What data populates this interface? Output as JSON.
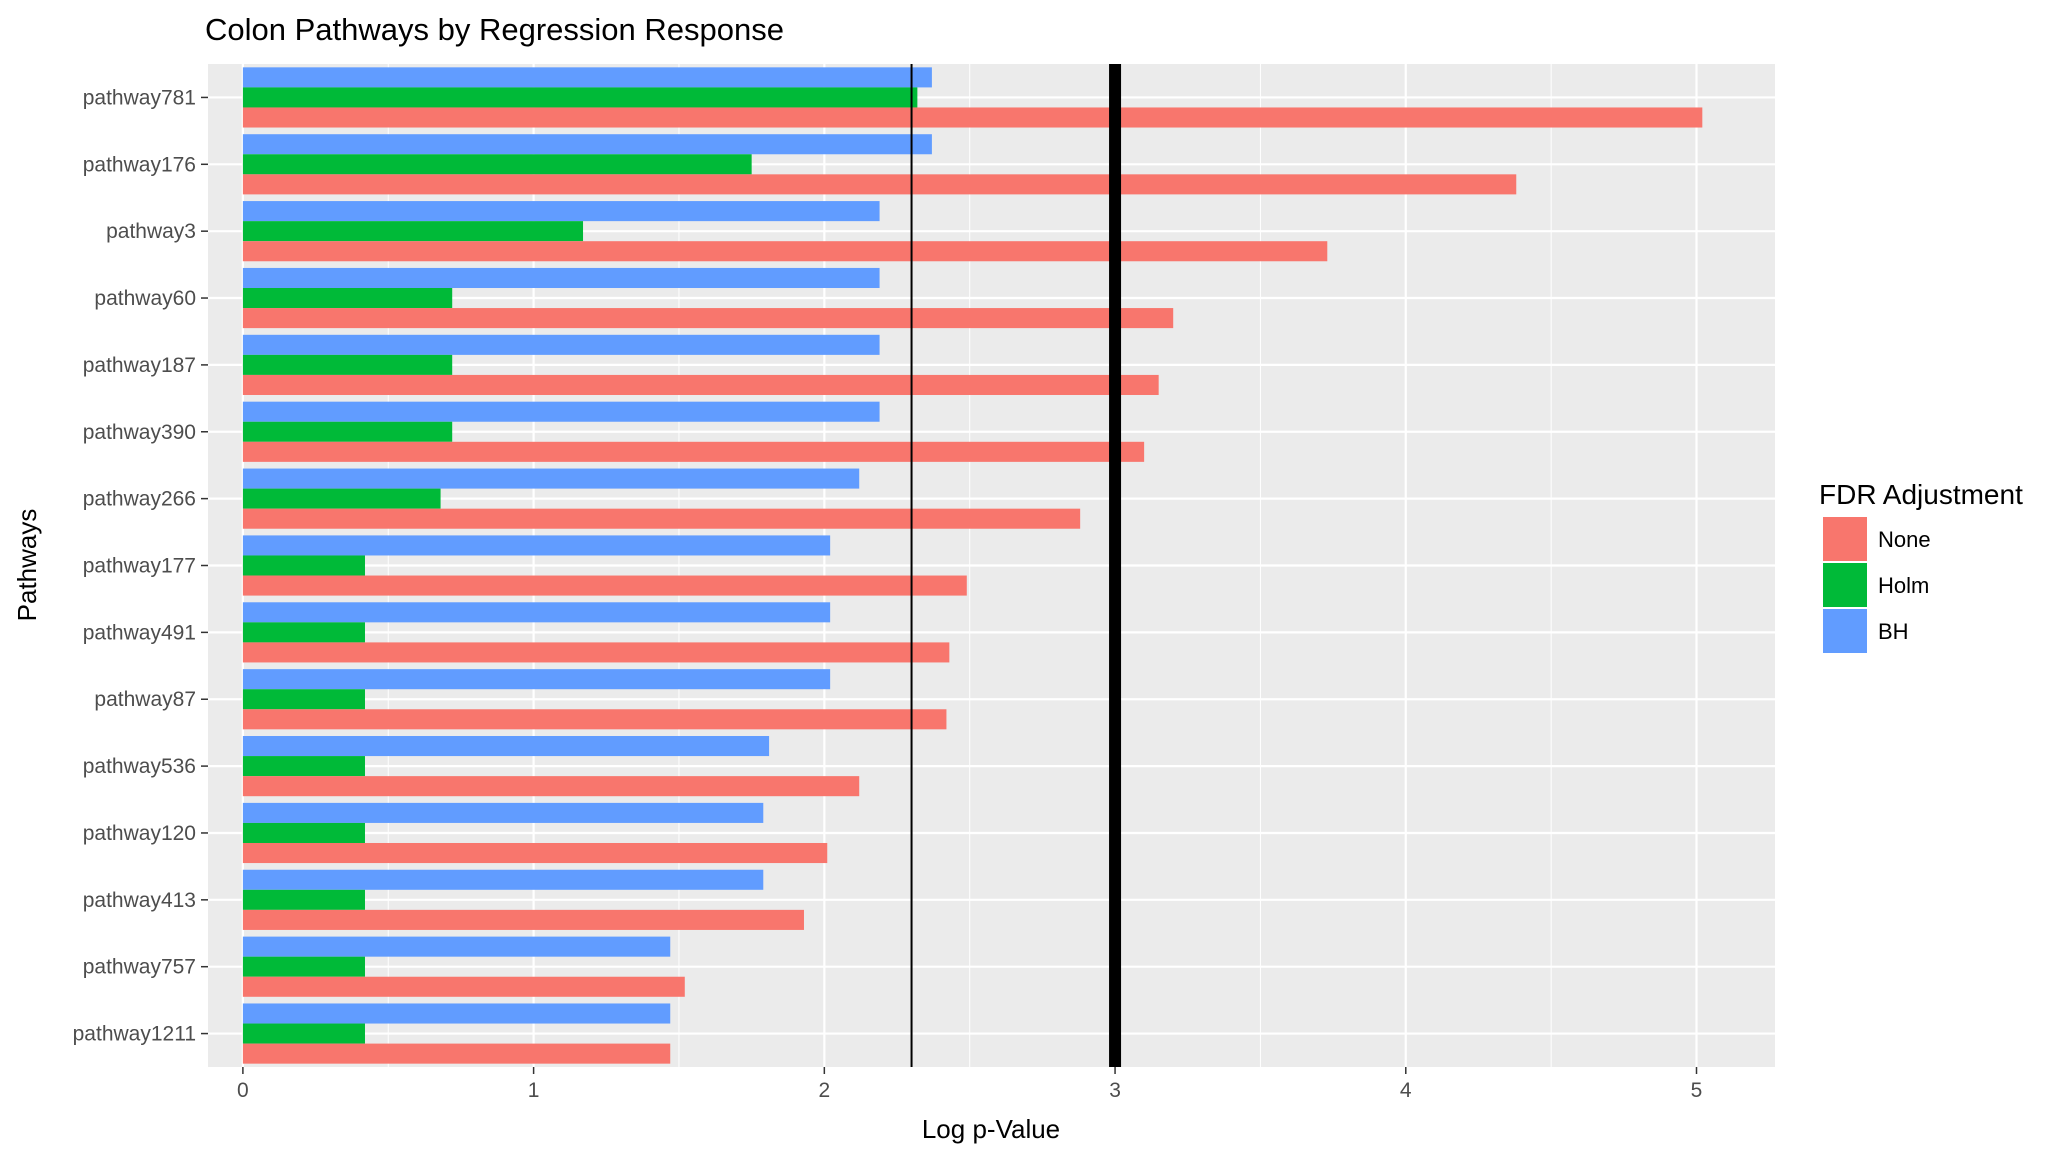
{
  "chart_data": {
    "type": "bar",
    "orientation": "horizontal",
    "title": "Colon Pathways by Regression Response",
    "xlabel": "Log p-Value",
    "ylabel": "Pathways",
    "xlim": [
      -0.12,
      5.27
    ],
    "xticks": [
      "0",
      "1",
      "2",
      "3",
      "4",
      "5"
    ],
    "grid": true,
    "legend_position": "right",
    "legend_title": "FDR Adjustment",
    "categories": [
      "pathway781",
      "pathway176",
      "pathway3",
      "pathway60",
      "pathway187",
      "pathway390",
      "pathway266",
      "pathway177",
      "pathway491",
      "pathway87",
      "pathway536",
      "pathway120",
      "pathway413",
      "pathway757",
      "pathway1211"
    ],
    "series": [
      {
        "name": "None",
        "color": "#F8766D",
        "values": [
          5.02,
          4.38,
          3.73,
          3.2,
          3.15,
          3.1,
          2.88,
          2.49,
          2.43,
          2.42,
          2.12,
          2.01,
          1.93,
          1.52,
          1.47
        ]
      },
      {
        "name": "Holm",
        "color": "#00BA38",
        "values": [
          2.32,
          1.75,
          1.17,
          0.72,
          0.72,
          0.72,
          0.68,
          0.42,
          0.42,
          0.42,
          0.42,
          0.42,
          0.42,
          0.42,
          0.42
        ]
      },
      {
        "name": "BH",
        "color": "#619CFF",
        "values": [
          2.37,
          2.37,
          2.19,
          2.19,
          2.19,
          2.19,
          2.12,
          2.02,
          2.02,
          2.02,
          1.81,
          1.79,
          1.79,
          1.47,
          1.47
        ]
      }
    ],
    "reference_lines": [
      {
        "x": 2.3,
        "style": "thin"
      },
      {
        "x": 3.0,
        "style": "thick"
      }
    ]
  }
}
